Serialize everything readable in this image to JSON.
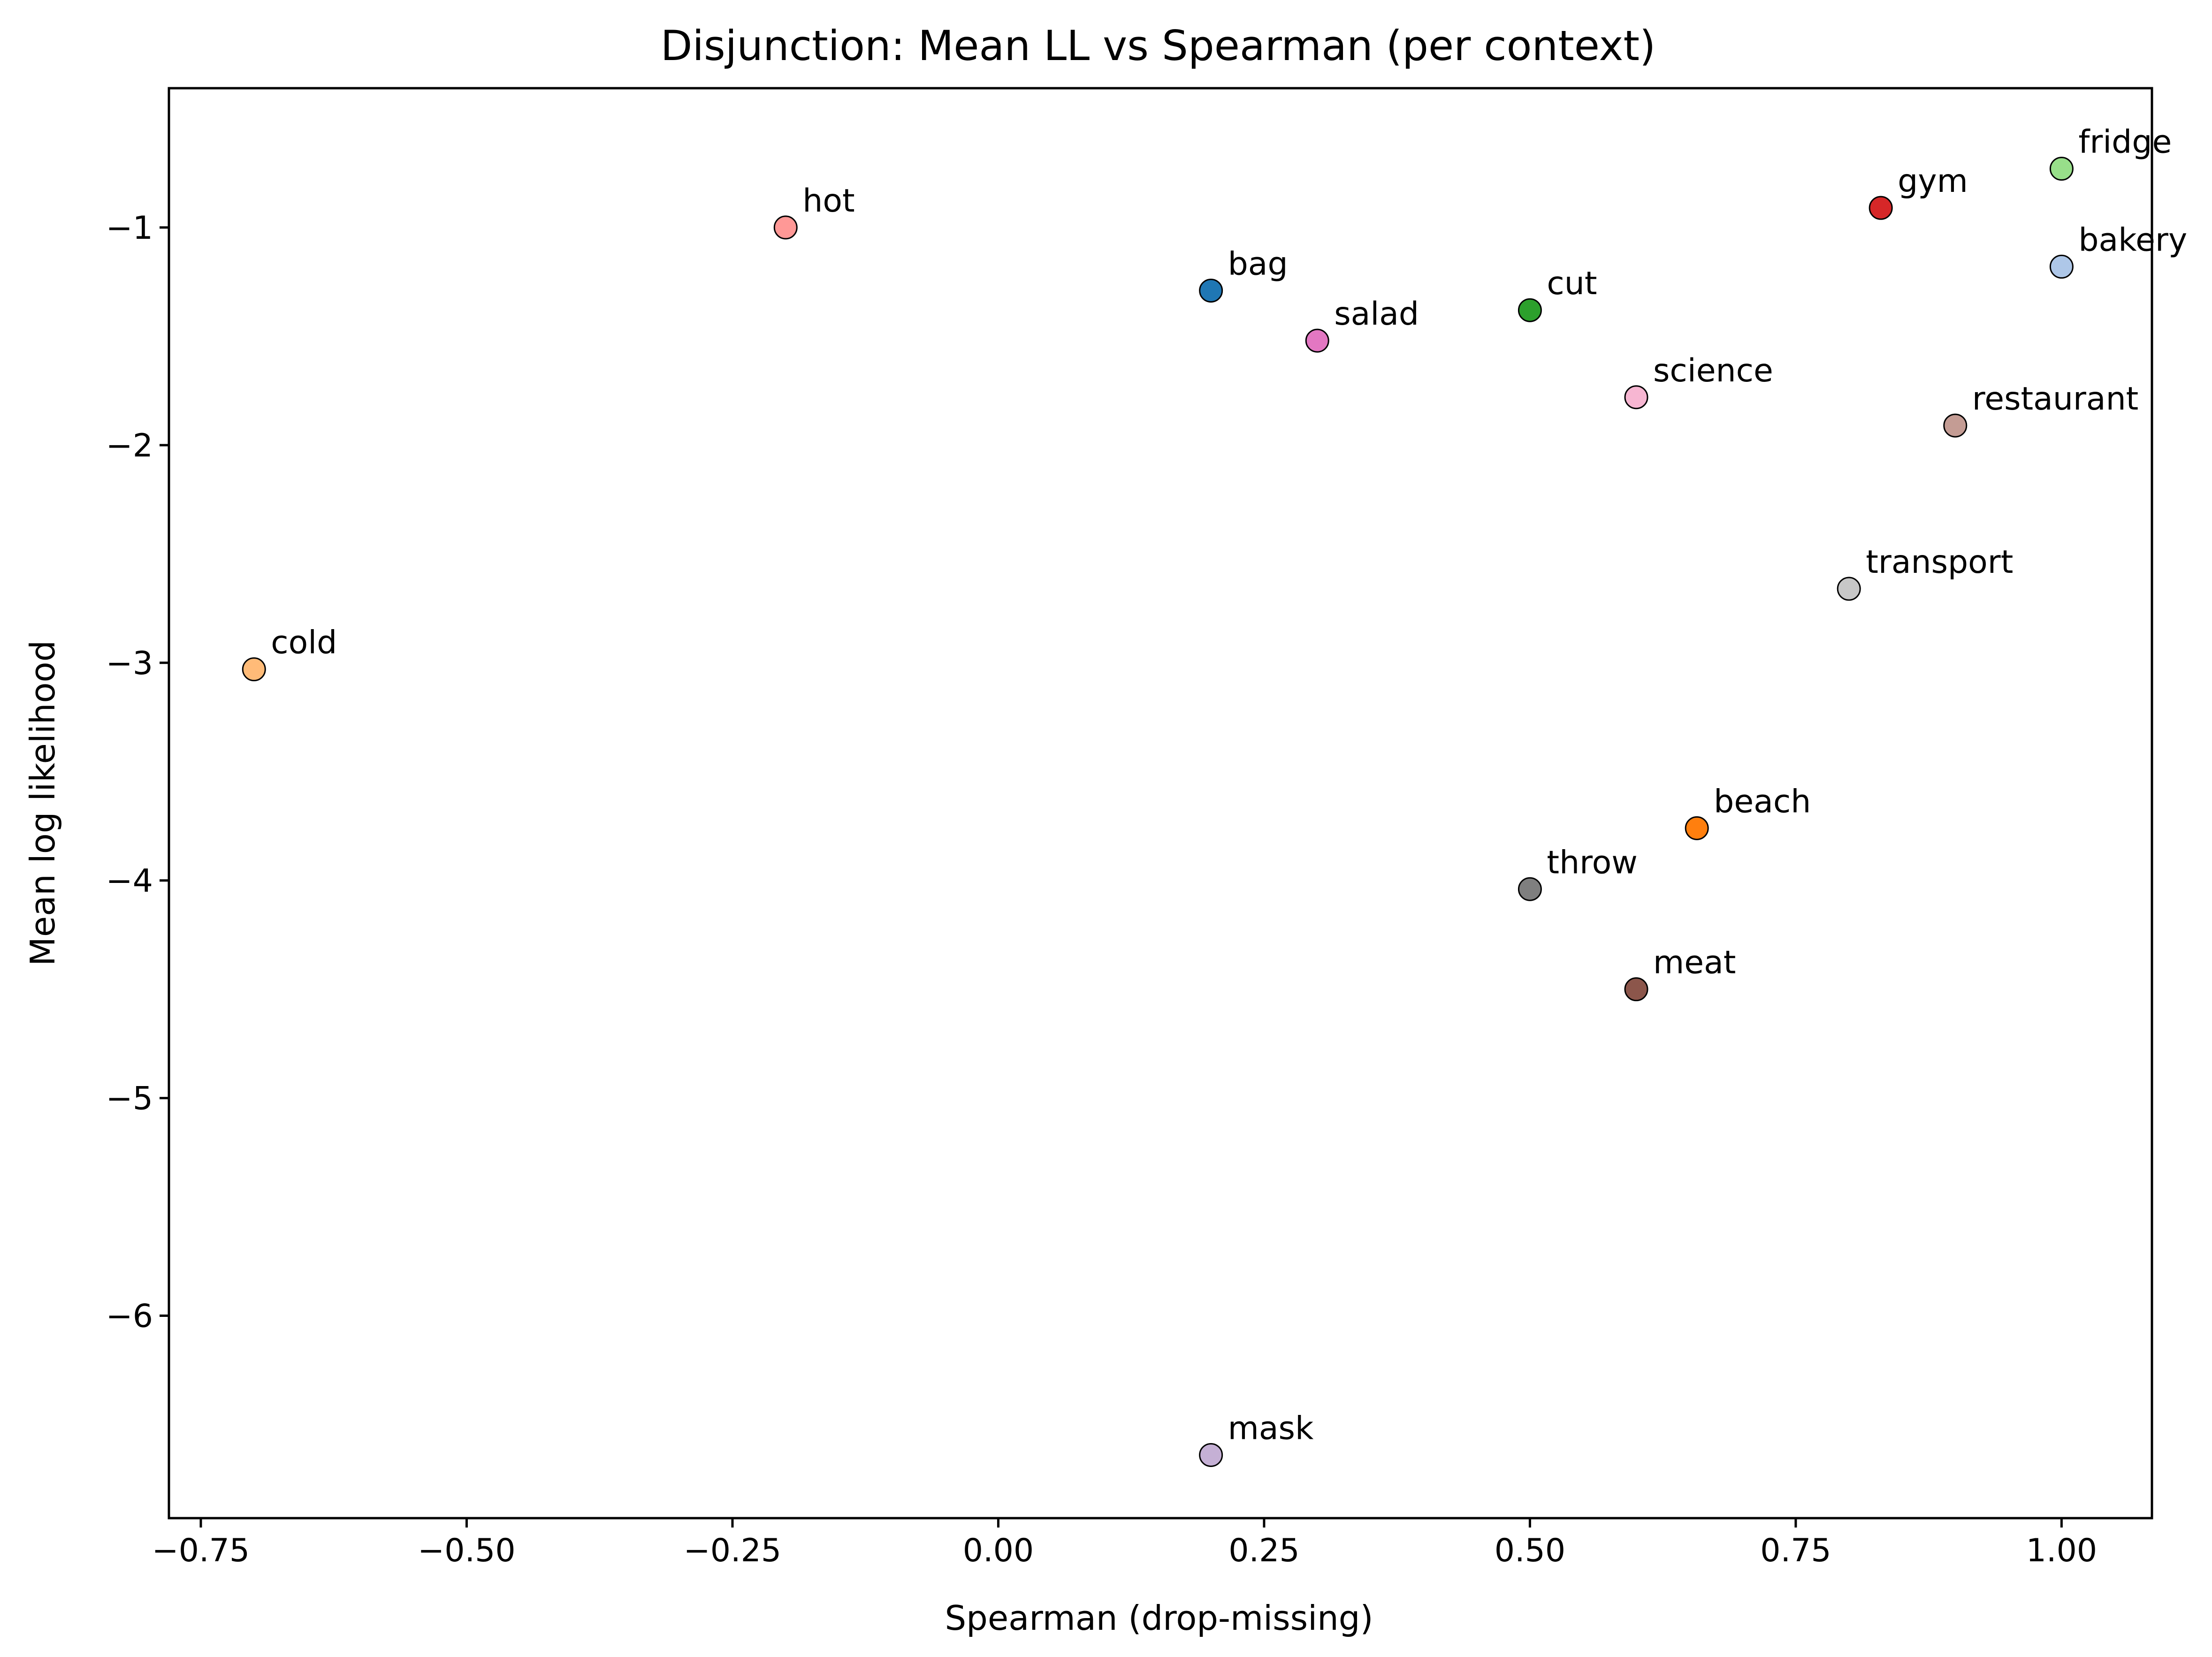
{
  "chart_data": {
    "type": "scatter",
    "title": "Disjunction: Mean LL vs Spearman (per context)",
    "xlabel": "Spearman (drop-missing)",
    "ylabel": "Mean log likelihood",
    "xlim": [
      -0.78,
      1.085
    ],
    "ylim": [
      -6.93,
      -0.36
    ],
    "xticks": [
      -0.75,
      -0.5,
      -0.25,
      0.0,
      0.25,
      0.5,
      0.75,
      1.0
    ],
    "xtick_labels": [
      "−0.75",
      "−0.50",
      "−0.25",
      "0.00",
      "0.25",
      "0.50",
      "0.75",
      "1.00"
    ],
    "yticks": [
      -1,
      -2,
      -3,
      -4,
      -5,
      -6
    ],
    "ytick_labels": [
      "−1",
      "−2",
      "−3",
      "−4",
      "−5",
      "−6"
    ],
    "grid": false,
    "legend": "none",
    "points": [
      {
        "label": "hot",
        "x": -0.2,
        "y": -1.0,
        "color": "#ff9896"
      },
      {
        "label": "bag",
        "x": 0.2,
        "y": -1.29,
        "color": "#1f77b4"
      },
      {
        "label": "salad",
        "x": 0.3,
        "y": -1.52,
        "color": "#e377c2"
      },
      {
        "label": "cut",
        "x": 0.5,
        "y": -1.38,
        "color": "#2ca02c"
      },
      {
        "label": "science",
        "x": 0.6,
        "y": -1.78,
        "color": "#f7b6d2"
      },
      {
        "label": "gym",
        "x": 0.83,
        "y": -0.91,
        "color": "#d62728"
      },
      {
        "label": "fridge",
        "x": 1.0,
        "y": -0.73,
        "color": "#98df8a"
      },
      {
        "label": "bakery",
        "x": 1.0,
        "y": -1.18,
        "color": "#aec7e8"
      },
      {
        "label": "restaurant",
        "x": 0.9,
        "y": -1.91,
        "color": "#c49c94"
      },
      {
        "label": "transport",
        "x": 0.8,
        "y": -2.66,
        "color": "#c7c7c7"
      },
      {
        "label": "cold",
        "x": -0.7,
        "y": -3.03,
        "color": "#ffbb78"
      },
      {
        "label": "beach",
        "x": 0.657,
        "y": -3.76,
        "color": "#ff7f0e"
      },
      {
        "label": "throw",
        "x": 0.5,
        "y": -4.04,
        "color": "#7f7f7f"
      },
      {
        "label": "meat",
        "x": 0.6,
        "y": -4.5,
        "color": "#8c564b"
      },
      {
        "label": "mask",
        "x": 0.2,
        "y": -6.64,
        "color": "#c5b0d5"
      }
    ]
  }
}
